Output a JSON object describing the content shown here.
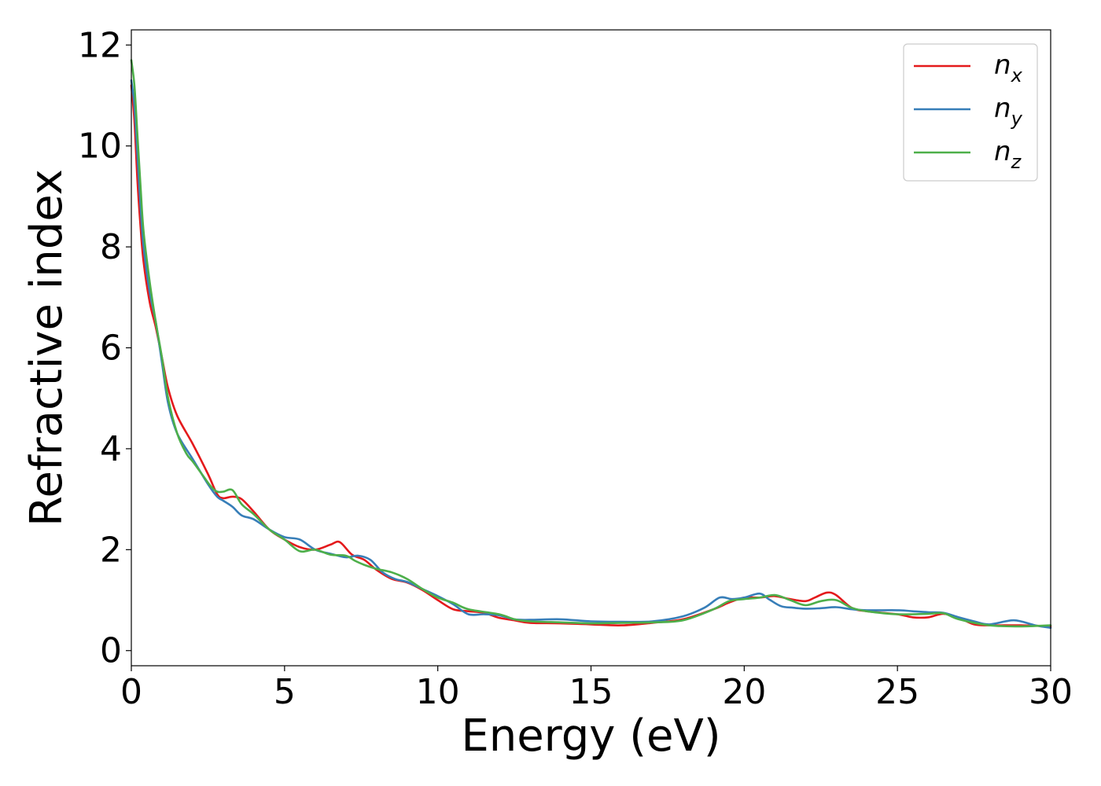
{
  "chart_data": {
    "type": "line",
    "title": "",
    "xlabel": "Energy (eV)",
    "ylabel": "Refractive index",
    "xlim": [
      0,
      30
    ],
    "ylim": [
      -0.3,
      12.3
    ],
    "xticks": [
      0,
      5,
      10,
      15,
      20,
      25,
      30
    ],
    "yticks": [
      0,
      2,
      4,
      6,
      8,
      10,
      12
    ],
    "grid": false,
    "legend_position": "top-right",
    "series": [
      {
        "name": "n_x",
        "legend_base": "n",
        "legend_sub": "x",
        "color": "#e41a1c",
        "x": [
          0,
          0.1,
          0.2,
          0.3,
          0.4,
          0.6,
          0.8,
          1.0,
          1.2,
          1.5,
          2.0,
          2.5,
          2.8,
          3.0,
          3.3,
          3.6,
          4.0,
          4.5,
          5.0,
          5.5,
          6.0,
          6.5,
          6.8,
          7.2,
          7.6,
          8.0,
          8.5,
          9.0,
          9.5,
          10.0,
          10.5,
          11.0,
          11.5,
          12.0,
          12.5,
          13.0,
          14.0,
          15.0,
          16.0,
          17.0,
          18.0,
          19.0,
          19.5,
          20.0,
          20.5,
          21.0,
          21.5,
          22.0,
          22.3,
          22.7,
          23.0,
          23.5,
          24.0,
          25.0,
          25.5,
          26.0,
          26.5,
          27.0,
          27.5,
          28.0,
          29.0,
          30.0
        ],
        "y": [
          11.2,
          10.5,
          9.3,
          8.4,
          7.7,
          6.9,
          6.4,
          5.8,
          5.2,
          4.65,
          4.1,
          3.5,
          3.1,
          3.02,
          3.05,
          3.0,
          2.75,
          2.4,
          2.2,
          2.05,
          2.0,
          2.1,
          2.15,
          1.9,
          1.8,
          1.6,
          1.42,
          1.35,
          1.2,
          1.0,
          0.82,
          0.78,
          0.75,
          0.65,
          0.6,
          0.55,
          0.54,
          0.52,
          0.5,
          0.55,
          0.62,
          0.82,
          0.95,
          1.05,
          1.05,
          1.08,
          1.02,
          0.98,
          1.05,
          1.15,
          1.1,
          0.85,
          0.78,
          0.72,
          0.66,
          0.66,
          0.73,
          0.65,
          0.52,
          0.5,
          0.5,
          0.48
        ]
      },
      {
        "name": "n_y",
        "legend_base": "n",
        "legend_sub": "y",
        "color": "#377eb8",
        "x": [
          0,
          0.1,
          0.2,
          0.3,
          0.4,
          0.6,
          0.8,
          1.0,
          1.2,
          1.5,
          2.0,
          2.5,
          2.8,
          3.0,
          3.3,
          3.6,
          4.0,
          4.5,
          5.0,
          5.5,
          6.0,
          6.5,
          7.0,
          7.4,
          7.8,
          8.2,
          8.6,
          9.0,
          9.5,
          10.0,
          10.5,
          11.0,
          11.5,
          12.0,
          12.5,
          13.0,
          14.0,
          15.0,
          16.0,
          17.0,
          18.0,
          18.7,
          19.2,
          19.6,
          20.0,
          20.5,
          20.8,
          21.2,
          21.6,
          22.0,
          22.5,
          23.0,
          23.5,
          24.0,
          25.0,
          25.5,
          26.0,
          26.5,
          27.0,
          27.5,
          28.0,
          28.8,
          29.5,
          30.0
        ],
        "y": [
          11.3,
          10.8,
          9.8,
          8.8,
          8.0,
          7.1,
          6.5,
          5.7,
          4.9,
          4.3,
          3.8,
          3.3,
          3.05,
          2.97,
          2.85,
          2.68,
          2.6,
          2.4,
          2.25,
          2.2,
          2.0,
          1.92,
          1.85,
          1.88,
          1.8,
          1.55,
          1.42,
          1.36,
          1.22,
          1.08,
          0.92,
          0.72,
          0.72,
          0.7,
          0.62,
          0.61,
          0.62,
          0.58,
          0.57,
          0.58,
          0.68,
          0.85,
          1.05,
          1.02,
          1.05,
          1.13,
          1.02,
          0.88,
          0.85,
          0.83,
          0.84,
          0.86,
          0.82,
          0.8,
          0.8,
          0.78,
          0.76,
          0.75,
          0.66,
          0.58,
          0.52,
          0.6,
          0.5,
          0.45
        ]
      },
      {
        "name": "n_z",
        "legend_base": "n",
        "legend_sub": "z",
        "color": "#4daf4a",
        "x": [
          0,
          0.1,
          0.2,
          0.3,
          0.4,
          0.6,
          0.8,
          1.0,
          1.2,
          1.5,
          1.8,
          2.0,
          2.3,
          2.6,
          2.8,
          3.0,
          3.3,
          3.6,
          4.0,
          4.5,
          5.0,
          5.5,
          6.0,
          6.5,
          7.0,
          7.3,
          7.6,
          8.0,
          8.5,
          9.0,
          9.5,
          10.0,
          10.5,
          11.0,
          12.0,
          12.5,
          13.0,
          14.0,
          15.0,
          16.0,
          17.0,
          18.0,
          19.0,
          19.5,
          20.0,
          20.5,
          21.0,
          21.5,
          22.0,
          22.5,
          23.0,
          23.5,
          24.0,
          25.0,
          26.0,
          26.5,
          27.0,
          28.0,
          29.0,
          30.0
        ],
        "y": [
          11.7,
          11.2,
          10.2,
          9.2,
          8.3,
          7.3,
          6.5,
          5.8,
          5.0,
          4.3,
          3.9,
          3.75,
          3.5,
          3.25,
          3.15,
          3.15,
          3.18,
          2.9,
          2.7,
          2.4,
          2.2,
          1.97,
          2.0,
          1.9,
          1.88,
          1.78,
          1.7,
          1.62,
          1.55,
          1.42,
          1.22,
          1.05,
          0.95,
          0.82,
          0.72,
          0.62,
          0.58,
          0.56,
          0.54,
          0.55,
          0.56,
          0.6,
          0.82,
          0.98,
          1.02,
          1.05,
          1.1,
          1.0,
          0.9,
          0.98,
          1.0,
          0.85,
          0.78,
          0.72,
          0.73,
          0.74,
          0.62,
          0.5,
          0.48,
          0.5
        ]
      }
    ]
  }
}
